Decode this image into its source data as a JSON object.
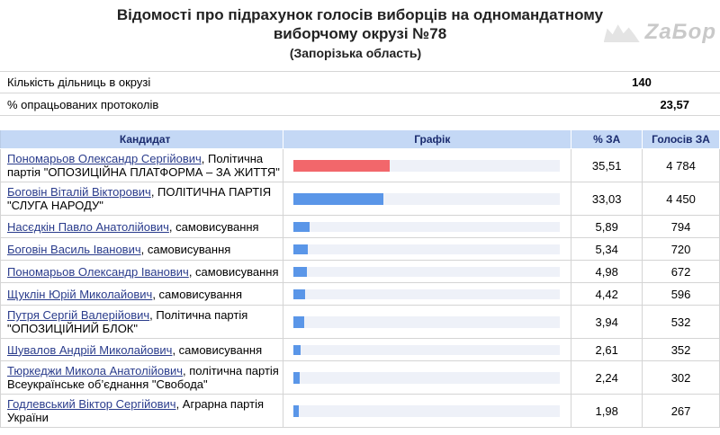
{
  "header": {
    "title_line1": "Відомості про підрахунок голосів виборців на одномандатному",
    "title_line2": "виборчому окрузі №78",
    "region": "(Запорізька область)",
    "watermark": "ZаБор"
  },
  "summary": {
    "precincts_label": "Кількість дільниць в окрузі",
    "precincts_value": "140",
    "processed_label": "% опрацьованих протоколів",
    "processed_value": "23,57"
  },
  "table": {
    "columns": {
      "candidate": "Кандидат",
      "graph": "Графік",
      "percent": "% ЗА",
      "votes": "Голосів ЗА"
    },
    "rows": [
      {
        "name": "Пономарьов Олександр Сергійович",
        "party": ", Політична партія \"ОПОЗИЦІЙНА ПЛАТФОРМА – ЗА ЖИТТЯ\"",
        "percent": "35,51",
        "share": 35.51,
        "votes": "4 784",
        "highlight": true
      },
      {
        "name": "Боговін Віталій Вікторович",
        "party": ", ПОЛІТИЧНА ПАРТІЯ \"СЛУГА НАРОДУ\"",
        "percent": "33,03",
        "share": 33.03,
        "votes": "4 450",
        "highlight": false
      },
      {
        "name": "Насєдкін Павло Анатолійович",
        "party": ", самовисування",
        "percent": "5,89",
        "share": 5.89,
        "votes": "794",
        "highlight": false
      },
      {
        "name": "Боговін Василь Іванович",
        "party": ", самовисування",
        "percent": "5,34",
        "share": 5.34,
        "votes": "720",
        "highlight": false
      },
      {
        "name": "Пономарьов Олександр Іванович",
        "party": ", самовисування",
        "percent": "4,98",
        "share": 4.98,
        "votes": "672",
        "highlight": false
      },
      {
        "name": "Щуклін Юрій Миколайович",
        "party": ", самовисування",
        "percent": "4,42",
        "share": 4.42,
        "votes": "596",
        "highlight": false
      },
      {
        "name": "Путря Сергій Валерійович",
        "party": ", Політична партія \"ОПОЗИЦІЙНИЙ БЛОК\"",
        "percent": "3,94",
        "share": 3.94,
        "votes": "532",
        "highlight": false
      },
      {
        "name": "Шувалов Андрій Миколайович",
        "party": ", самовисування",
        "percent": "2,61",
        "share": 2.61,
        "votes": "352",
        "highlight": false
      },
      {
        "name": "Тюркеджи Микола Анатолійович",
        "party": ", політична партія Всеукраїнське об’єднання \"Свобода\"",
        "percent": "2,24",
        "share": 2.24,
        "votes": "302",
        "highlight": false
      },
      {
        "name": "Годлевський Віктор Сергійович",
        "party": ", Аграрна партія України",
        "percent": "1,98",
        "share": 1.98,
        "votes": "267",
        "highlight": false
      }
    ]
  },
  "colors": {
    "header_bg": "#c4d8f5",
    "bar_blue": "#5a96e8",
    "bar_red": "#f2676b",
    "link": "#2a3c8c"
  }
}
